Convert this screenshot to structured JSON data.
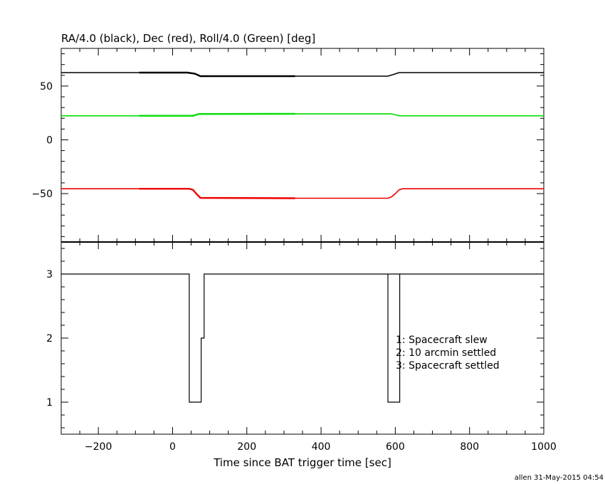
{
  "header": {
    "title": "RA/4.0 (black), Dec (red), Roll/4.0 (Green) [deg]"
  },
  "footer": {
    "credit": "allen 31-May-2015 04:54"
  },
  "chart_data": [
    {
      "type": "line",
      "title": "RA/4.0 (black), Dec (red), Roll/4.0 (Green) [deg]",
      "xlim": [
        -300,
        1000
      ],
      "ylim": [
        -95,
        85
      ],
      "yticks": [
        50,
        0,
        -50
      ],
      "ytick_labels": [
        "50",
        "0",
        "−50"
      ],
      "series": [
        {
          "color": "#000000",
          "x": [
            -300,
            40,
            60,
            75,
            330,
            580,
            595,
            610,
            1000
          ],
          "y": [
            62.5,
            62.5,
            61.5,
            59.2,
            59.2,
            59.2,
            60.8,
            62.5,
            62.5
          ]
        },
        {
          "color": "#00dd00",
          "x": [
            -300,
            55,
            70,
            330,
            590,
            610,
            1000
          ],
          "y": [
            22.3,
            22.3,
            24.0,
            24.2,
            24.2,
            22.3,
            22.3
          ]
        },
        {
          "color": "#ee0000",
          "x": [
            -300,
            45,
            55,
            65,
            75,
            330,
            580,
            590,
            600,
            610,
            620,
            1000
          ],
          "y": [
            -45.5,
            -45.5,
            -46.5,
            -50.5,
            -54.0,
            -54.3,
            -54.3,
            -53.0,
            -50.0,
            -46.5,
            -45.5,
            -45.5
          ]
        }
      ]
    },
    {
      "type": "line",
      "xlabel": "Time since BAT trigger time [sec]",
      "xlim": [
        -300,
        1000
      ],
      "ylim": [
        0.5,
        3.5
      ],
      "xticks": [
        -200,
        0,
        200,
        400,
        600,
        800,
        1000
      ],
      "xtick_labels": [
        "−200",
        "0",
        "200",
        "400",
        "600",
        "800",
        "1000"
      ],
      "yticks": [
        3,
        2,
        1
      ],
      "ytick_labels": [
        "3",
        "2",
        "1"
      ],
      "series": [
        {
          "color": "#000000",
          "step": true,
          "x": [
            -300,
            45,
            45,
            77,
            77,
            85,
            85,
            1000,
            1000
          ],
          "y": [
            3,
            3,
            1,
            1,
            2,
            2,
            3,
            3,
            3
          ]
        },
        {
          "color": "#000000",
          "step": true,
          "x": [
            580,
            580,
            612,
            612
          ],
          "y": [
            3,
            1,
            1,
            3
          ]
        }
      ],
      "annotations": [
        "1: Spacecraft slew",
        "2: 10 arcmin settled",
        "3: Spacecraft settled"
      ]
    }
  ]
}
